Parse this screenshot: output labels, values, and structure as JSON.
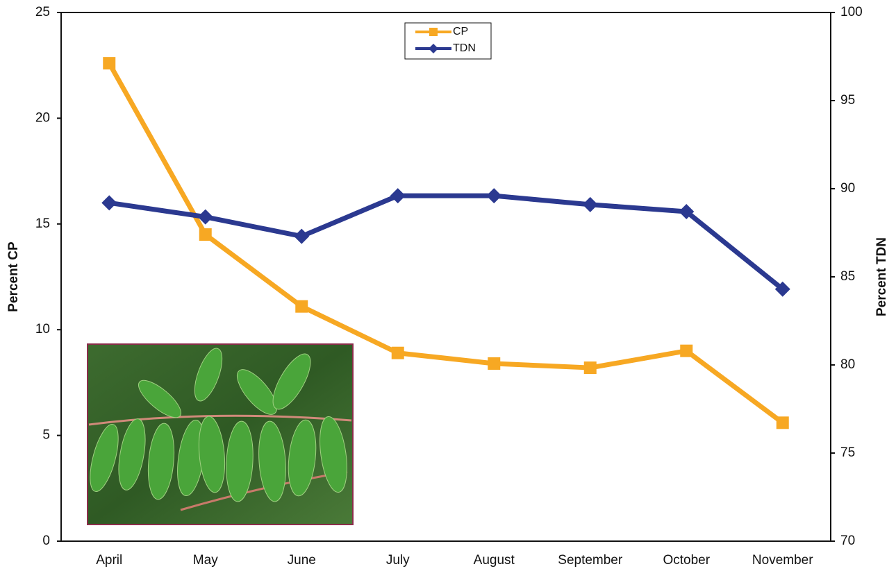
{
  "chart_data": {
    "type": "line",
    "categories": [
      "April",
      "May",
      "June",
      "July",
      "August",
      "September",
      "October",
      "November"
    ],
    "y_label": "Percent CP",
    "y2_label": "Percent TDN",
    "ylim": [
      0,
      25
    ],
    "yticks": [
      0,
      5,
      10,
      15,
      20,
      25
    ],
    "y2lim": [
      70,
      100
    ],
    "y2ticks": [
      70,
      75,
      80,
      85,
      90,
      95,
      100
    ],
    "legend_position": "top",
    "series": [
      {
        "name": "CP",
        "color": "#f7a823",
        "marker": "square",
        "values": [
          22.6,
          14.5,
          11.1,
          8.9,
          8.4,
          8.2,
          9.0,
          5.6
        ]
      },
      {
        "name": "TDN",
        "color": "#2b3990",
        "marker": "diamond",
        "axis": "y2",
        "values": [
          89.2,
          88.4,
          87.3,
          89.6,
          89.6,
          89.1,
          88.7,
          84.3
        ]
      }
    ]
  }
}
